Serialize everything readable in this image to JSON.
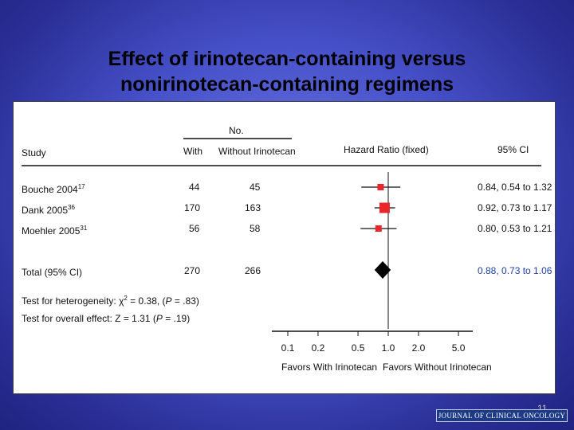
{
  "slide": {
    "title_line1": "Effect of irinotecan-containing versus",
    "title_line2": "nonirinotecan-containing regimens",
    "page_number": "11",
    "journal": "JOURNAL OF CLINICAL ONCOLOGY"
  },
  "colors": {
    "marker": "#e8262b",
    "total_ci_text": "#1e3fa6"
  },
  "chart_data": {
    "type": "forest",
    "headers": {
      "study": "Study",
      "no_group": "No.",
      "with": "With",
      "without": "Without Irinotecan",
      "hazard_ratio": "Hazard Ratio (fixed)",
      "ci": "95% CI"
    },
    "studies": [
      {
        "name": "Bouche 2004",
        "ref": "17",
        "with": "44",
        "without": "45",
        "hr": 0.84,
        "lower": 0.54,
        "upper": 1.32,
        "ci_text": "0.84, 0.54 to 1.32"
      },
      {
        "name": "Dank 2005",
        "ref": "36",
        "with": "170",
        "without": "163",
        "hr": 0.92,
        "lower": 0.73,
        "upper": 1.17,
        "ci_text": "0.92, 0.73 to 1.17"
      },
      {
        "name": "Moehler 2005",
        "ref": "31",
        "with": "56",
        "without": "58",
        "hr": 0.8,
        "lower": 0.53,
        "upper": 1.21,
        "ci_text": "0.80, 0.53 to 1.21"
      }
    ],
    "total": {
      "name": "Total (95% CI)",
      "with": "270",
      "without": "266",
      "hr": 0.88,
      "lower": 0.73,
      "upper": 1.06,
      "ci_text": "0.88, 0.73 to 1.06"
    },
    "tests": {
      "heterogeneity_prefix": "Test for heterogeneity: ",
      "chi": "χ",
      "sup2": "2",
      "heterogeneity_rest": " = 0.38, (",
      "p_label": "P",
      "heterogeneity_p": " = .83)",
      "overall_prefix": "Test for overall effect: Z = 1.31 (",
      "overall_p": " = .19)"
    },
    "axis": {
      "scale": "log",
      "ticks": [
        0.1,
        0.2,
        0.5,
        1.0,
        2.0,
        5.0
      ],
      "tick_labels": [
        "0.1",
        "0.2",
        "0.5",
        "1.0",
        "2.0",
        "5.0"
      ],
      "left_label": "Favors With Irinotecan",
      "right_label": "Favors Without Irinotecan"
    }
  }
}
